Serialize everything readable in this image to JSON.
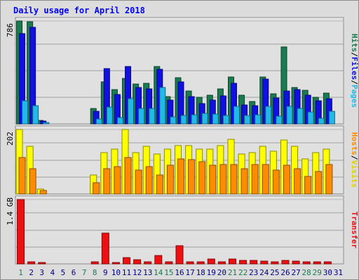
{
  "title": "Daily usage for April 2018",
  "colors": {
    "background": "#dcdcdc",
    "plot_background": "#e0e0e0",
    "title": "#0000ff",
    "hits": "#1a7a50",
    "files": "#1010e0",
    "pages": "#22b8e8",
    "visits": "#ffff00",
    "hosts": "#ff8c00",
    "kbytes": "#ee1010",
    "weekend_label": "#1a7a50",
    "weekday_label": "#000080"
  },
  "chart_data": [
    {
      "type": "bar",
      "panel": "hits-files-pages",
      "ylabel": "Hits/Files/Pages",
      "ylabel_parts": [
        {
          "text": "Hits",
          "color": "#1a7a50"
        },
        {
          "text": "/",
          "color": "#000000"
        },
        {
          "text": "Files",
          "color": "#1010e0"
        },
        {
          "text": "/",
          "color": "#000000"
        },
        {
          "text": "Pages",
          "color": "#22b8e8"
        }
      ],
      "max_label": "786",
      "ylim": [
        0,
        786
      ],
      "categories": [
        "1",
        "2",
        "3",
        "4",
        "5",
        "6",
        "7",
        "8",
        "9",
        "10",
        "11",
        "12",
        "13",
        "14",
        "15",
        "16",
        "17",
        "18",
        "19",
        "20",
        "21",
        "22",
        "23",
        "24",
        "25",
        "26",
        "27",
        "28",
        "29",
        "30",
        "31"
      ],
      "series": [
        {
          "key": "hits",
          "values": [
            786,
            780,
            25,
            0,
            0,
            0,
            0,
            115,
            320,
            260,
            350,
            305,
            310,
            440,
            210,
            355,
            250,
            205,
            220,
            270,
            360,
            220,
            170,
            360,
            230,
            590,
            280,
            255,
            205,
            235,
            0
          ]
        },
        {
          "key": "files",
          "values": [
            690,
            740,
            20,
            0,
            0,
            0,
            0,
            95,
            420,
            225,
            440,
            280,
            265,
            415,
            180,
            320,
            210,
            155,
            180,
            215,
            310,
            145,
            140,
            340,
            200,
            250,
            260,
            220,
            175,
            195,
            0
          ]
        },
        {
          "key": "pages",
          "values": [
            175,
            140,
            5,
            0,
            0,
            0,
            0,
            35,
            130,
            50,
            195,
            120,
            115,
            280,
            55,
            65,
            70,
            80,
            75,
            65,
            135,
            65,
            70,
            135,
            60,
            135,
            120,
            90,
            45,
            95,
            0
          ]
        }
      ]
    },
    {
      "type": "bar",
      "panel": "hosts-visits",
      "ylabel": "Hosts/Visits",
      "ylabel_parts": [
        {
          "text": "Hosts",
          "color": "#ff8c00"
        },
        {
          "text": "/",
          "color": "#000000"
        },
        {
          "text": "Visits",
          "color": "#e0d000"
        }
      ],
      "max_label": "202",
      "ylim": [
        0,
        202
      ],
      "categories": [
        "1",
        "2",
        "3",
        "4",
        "5",
        "6",
        "7",
        "8",
        "9",
        "10",
        "11",
        "12",
        "13",
        "14",
        "15",
        "16",
        "17",
        "18",
        "19",
        "20",
        "21",
        "22",
        "23",
        "24",
        "25",
        "26",
        "27",
        "28",
        "29",
        "30",
        "31"
      ],
      "series": [
        {
          "key": "visits",
          "values": [
            202,
            150,
            15,
            0,
            0,
            0,
            0,
            60,
            130,
            140,
            202,
            130,
            150,
            125,
            140,
            152,
            152,
            140,
            140,
            152,
            172,
            125,
            130,
            150,
            135,
            168,
            150,
            110,
            130,
            140,
            0
          ]
        },
        {
          "key": "hosts",
          "values": [
            115,
            80,
            10,
            0,
            0,
            0,
            0,
            35,
            80,
            85,
            115,
            75,
            85,
            60,
            90,
            110,
            108,
            100,
            90,
            92,
            92,
            80,
            92,
            92,
            75,
            90,
            80,
            55,
            70,
            92,
            0
          ]
        }
      ]
    },
    {
      "type": "bar",
      "panel": "transfer",
      "ylabel": "Transfer",
      "ylabel_parts": [
        {
          "text": "Transfer",
          "color": "#ee1010"
        }
      ],
      "max_label": "1.4 GB",
      "ylim": [
        0,
        1.4
      ],
      "categories": [
        "1",
        "2",
        "3",
        "4",
        "5",
        "6",
        "7",
        "8",
        "9",
        "10",
        "11",
        "12",
        "13",
        "14",
        "15",
        "16",
        "17",
        "18",
        "19",
        "20",
        "21",
        "22",
        "23",
        "24",
        "25",
        "26",
        "27",
        "28",
        "29",
        "30",
        "31"
      ],
      "series": [
        {
          "key": "kbytes",
          "values": [
            1.4,
            0.04,
            0.03,
            0,
            0,
            0,
            0,
            0.04,
            0.67,
            0.03,
            0.14,
            0.09,
            0.04,
            0.18,
            0.05,
            0.4,
            0.05,
            0.04,
            0.11,
            0.05,
            0.1,
            0.08,
            0.07,
            0.06,
            0.05,
            0.07,
            0.06,
            0.04,
            0.04,
            0.05,
            0
          ]
        }
      ]
    }
  ],
  "day_labels": [
    "1",
    "2",
    "3",
    "4",
    "5",
    "6",
    "7",
    "8",
    "9",
    "10",
    "11",
    "12",
    "13",
    "14",
    "15",
    "16",
    "17",
    "18",
    "19",
    "20",
    "21",
    "22",
    "23",
    "24",
    "25",
    "26",
    "27",
    "28",
    "29",
    "30",
    "31"
  ],
  "weekend_days": [
    "1",
    "7",
    "8",
    "14",
    "15",
    "21",
    "22",
    "28",
    "29"
  ]
}
